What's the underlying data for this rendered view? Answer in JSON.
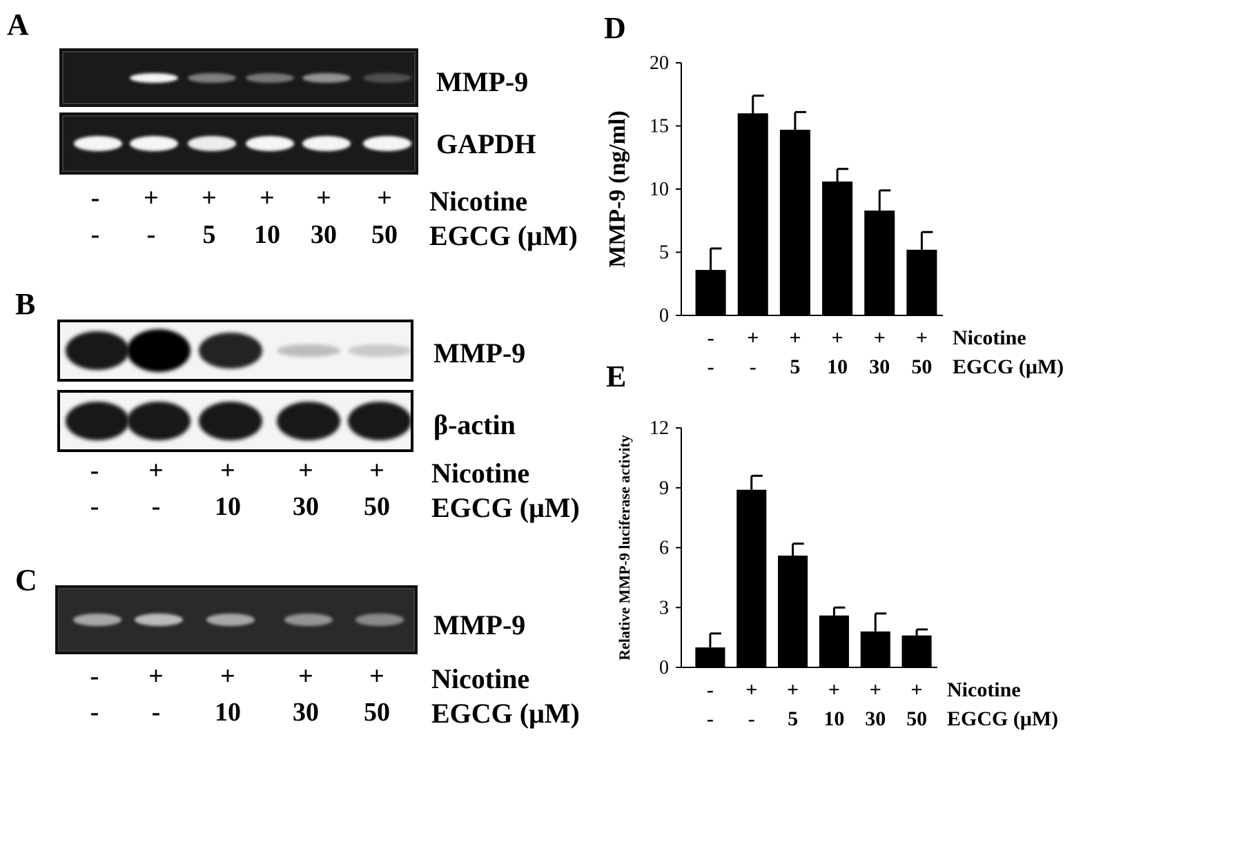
{
  "panels": {
    "A": {
      "letter": "A",
      "rows": [
        {
          "label": "MMP-9",
          "kind": "gel",
          "intensities": [
            0.0,
            0.95,
            0.35,
            0.3,
            0.45,
            0.1
          ]
        },
        {
          "label": "GAPDH",
          "kind": "gel",
          "intensities": [
            0.95,
            0.95,
            0.9,
            0.95,
            0.95,
            0.95
          ]
        }
      ],
      "nicotine_label": "Nicotine",
      "egcg_label": "EGCG (μM)",
      "nicotine": [
        "-",
        "+",
        "+",
        "+",
        "+",
        "+"
      ],
      "egcg": [
        "-",
        "-",
        "5",
        "10",
        "30",
        "50"
      ]
    },
    "B": {
      "letter": "B",
      "rows": [
        {
          "label": "MMP-9",
          "kind": "wb",
          "intensities": [
            0.9,
            1.0,
            0.85,
            0.2,
            0.15
          ]
        },
        {
          "label": "β-actin",
          "kind": "wb",
          "intensities": [
            0.9,
            0.9,
            0.9,
            0.9,
            0.9
          ]
        }
      ],
      "nicotine_label": "Nicotine",
      "egcg_label": "EGCG (μM)",
      "nicotine": [
        "-",
        "+",
        "+",
        "+",
        "+"
      ],
      "egcg": [
        "-",
        "-",
        "10",
        "30",
        "50"
      ]
    },
    "C": {
      "letter": "C",
      "rows": [
        {
          "label": "MMP-9",
          "kind": "gel",
          "intensities": [
            0.55,
            0.65,
            0.55,
            0.45,
            0.4
          ]
        }
      ],
      "nicotine_label": "Nicotine",
      "egcg_label": "EGCG (μM)",
      "nicotine": [
        "-",
        "+",
        "+",
        "+",
        "+"
      ],
      "egcg": [
        "-",
        "-",
        "10",
        "30",
        "50"
      ]
    }
  },
  "chart_data": [
    {
      "panel": "D",
      "type": "bar",
      "ylabel": "MMP-9 (ng/ml)",
      "ylim": [
        0,
        20
      ],
      "yticks": [
        "0",
        "5",
        "10",
        "15",
        "20"
      ],
      "values": [
        3.6,
        16.0,
        14.7,
        10.6,
        8.3,
        5.2
      ],
      "errors": [
        1.7,
        1.4,
        1.4,
        1.0,
        1.6,
        1.4
      ],
      "nicotine_label": "Nicotine",
      "egcg_label": "EGCG (μM)",
      "nicotine": [
        "-",
        "+",
        "+",
        "+",
        "+",
        "+"
      ],
      "egcg": [
        "-",
        "-",
        "5",
        "10",
        "30",
        "50"
      ]
    },
    {
      "panel": "E",
      "type": "bar",
      "ylabel": "Relative MMP-9 luciferase activity",
      "ylim": [
        0,
        12
      ],
      "yticks": [
        "0",
        "3",
        "6",
        "9",
        "12"
      ],
      "values": [
        1.0,
        8.9,
        5.6,
        2.6,
        1.8,
        1.6
      ],
      "errors": [
        0.7,
        0.7,
        0.6,
        0.4,
        0.9,
        0.3
      ],
      "nicotine_label": "Nicotine",
      "egcg_label": "EGCG (μM)",
      "nicotine": [
        "-",
        "+",
        "+",
        "+",
        "+",
        "+"
      ],
      "egcg": [
        "-",
        "-",
        "5",
        "10",
        "30",
        "50"
      ]
    }
  ]
}
